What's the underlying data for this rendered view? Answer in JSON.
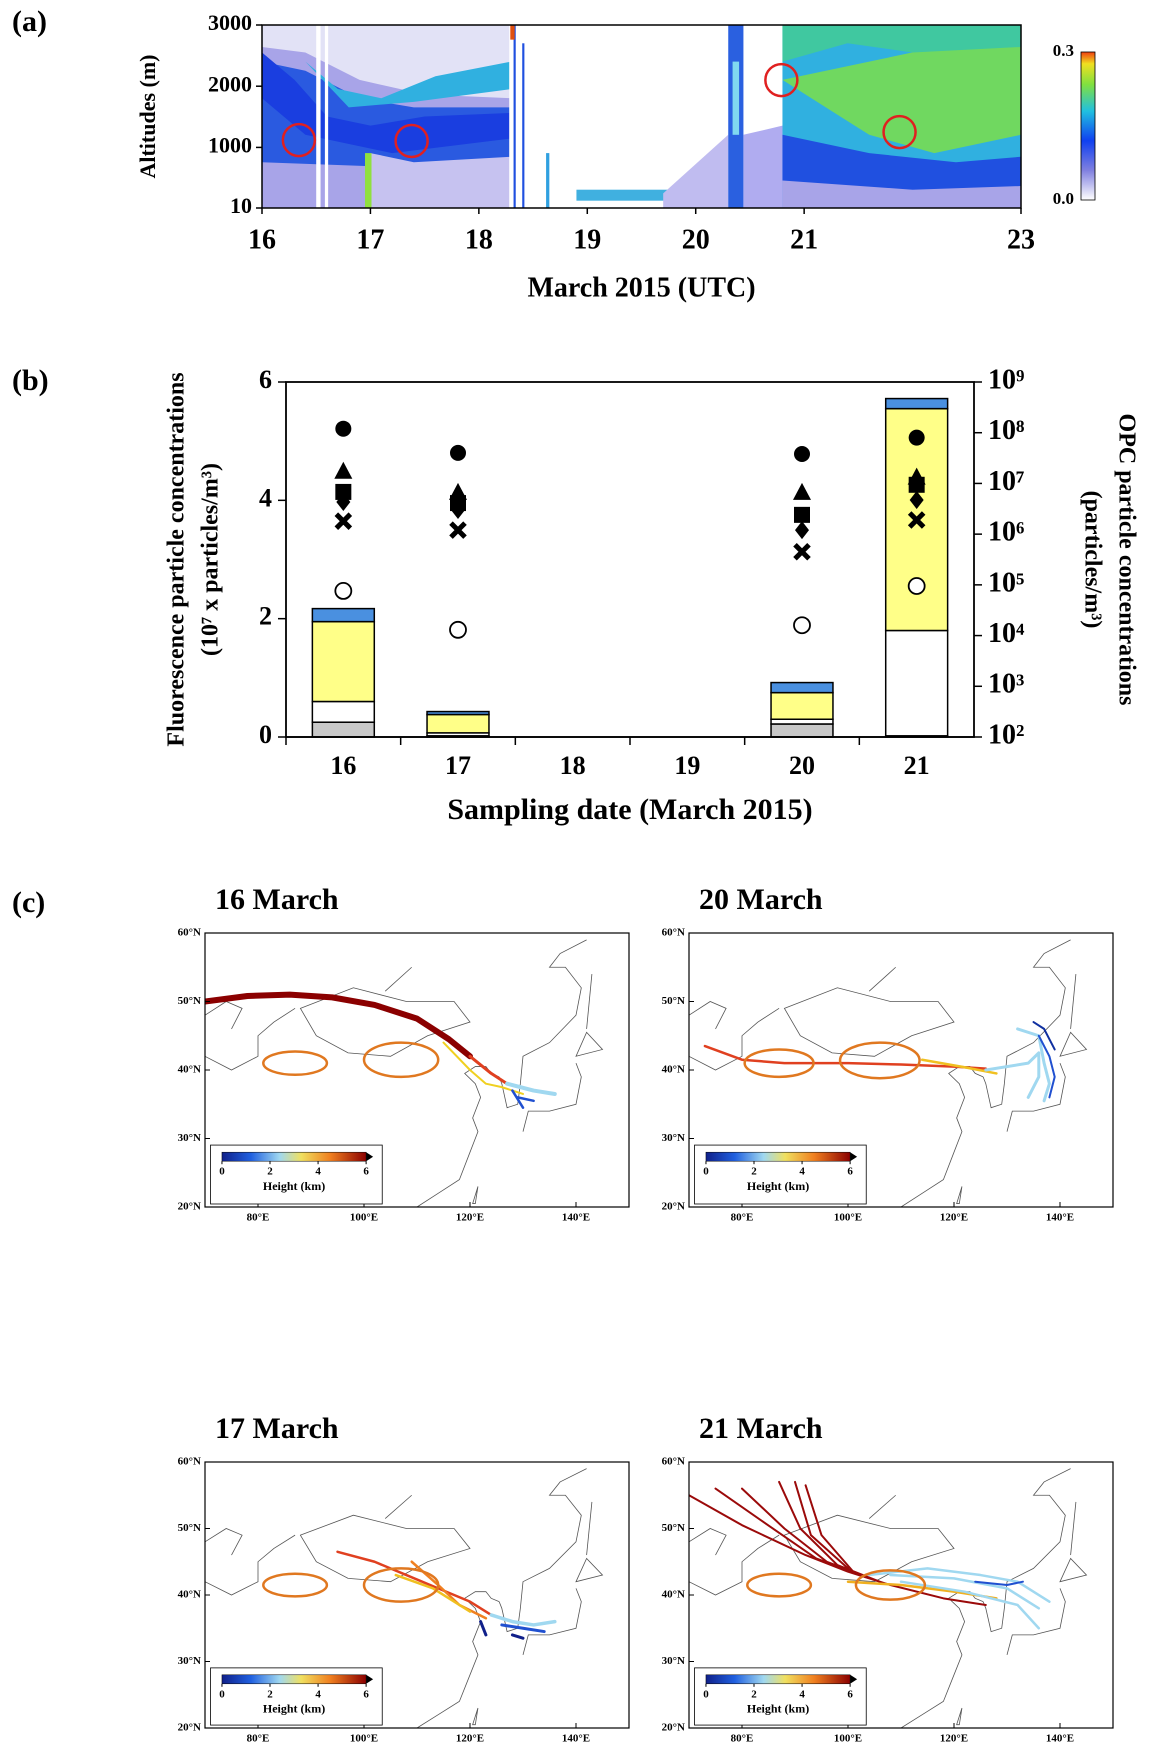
{
  "chart_data": [
    {
      "type": "heatmap",
      "panel_label": "(a)",
      "xlabel": "March  2015 (UTC)",
      "ylabel": "Altitudes (m)",
      "xlim": [
        16,
        23
      ],
      "xticks": [
        16,
        17,
        18,
        19,
        20,
        21,
        23
      ],
      "ylim": [
        10,
        3000
      ],
      "yticks": [
        10,
        1000,
        2000,
        3000
      ],
      "colorbar": {
        "lim": [
          0,
          0.3
        ],
        "ticks": [
          {
            "value": 0,
            "label": "0.0"
          },
          {
            "value": 0.3,
            "label": "0.3"
          }
        ]
      },
      "circles": {
        "color": "#e02020",
        "x": [
          16.34,
          17.38,
          20.79,
          21.88
        ],
        "y": [
          1120,
          1105,
          2100,
          1250
        ]
      }
    },
    {
      "type": "bar",
      "stacked": true,
      "panel_label": "(b)",
      "xlabel": "Sampling date (March 2015)",
      "ylabel": [
        "Fluorescence particle concentrations",
        "(10⁷ x particles/m³)"
      ],
      "y2label": [
        "OPC particle concentrations",
        "(particles/m³)"
      ],
      "categories": [
        "16",
        "17",
        "18",
        "19",
        "20",
        "21"
      ],
      "ylim": [
        0,
        6
      ],
      "yticks": [
        0,
        2,
        4,
        6
      ],
      "y2lim": [
        100,
        1000000000
      ],
      "y2log": true,
      "y2ticks": [
        {
          "value": 100,
          "label": "10²"
        },
        {
          "value": 1000,
          "label": "10³"
        },
        {
          "value": 10000,
          "label": "10⁴"
        },
        {
          "value": 100000,
          "label": "10⁵"
        },
        {
          "value": 1000000,
          "label": "10⁶"
        },
        {
          "value": 10000000,
          "label": "10⁷"
        },
        {
          "value": 100000000,
          "label": "10⁸"
        },
        {
          "value": 1000000000,
          "label": "10⁹"
        }
      ],
      "series": [
        {
          "color": "#c8c8c8",
          "values": [
            0.25,
            0.02,
            null,
            null,
            0.22,
            0.02
          ]
        },
        {
          "color": "#ffffff",
          "values": [
            0.35,
            0.05,
            null,
            null,
            0.08,
            1.78
          ]
        },
        {
          "color": "#ffff88",
          "values": [
            1.35,
            0.31,
            null,
            null,
            0.45,
            3.75
          ]
        },
        {
          "color": "#4a90e0",
          "values": [
            0.22,
            0.05,
            null,
            null,
            0.17,
            0.17
          ]
        },
        {
          "axis": "y2",
          "marker": "circle",
          "color": "#000000",
          "values": [
            120000000,
            40000000,
            null,
            null,
            38000000,
            80000000
          ]
        },
        {
          "axis": "y2",
          "marker": "triangle",
          "color": "#000000",
          "values": [
            17000000,
            6500000,
            null,
            null,
            6500000,
            13000000
          ]
        },
        {
          "axis": "y2",
          "marker": "square",
          "color": "#000000",
          "values": [
            6800000,
            4100000,
            null,
            null,
            2400000,
            9400000
          ]
        },
        {
          "axis": "y2",
          "marker": "diamond",
          "color": "#000000",
          "values": [
            4300000,
            3000000,
            null,
            null,
            1200000,
            4700000
          ]
        },
        {
          "axis": "y2",
          "marker": "x",
          "color": "#000000",
          "values": [
            1800000,
            1200000,
            null,
            null,
            450000,
            1900000
          ]
        },
        {
          "axis": "y2",
          "marker": "circle-open",
          "color": "#000000",
          "values": [
            76000,
            13000,
            null,
            null,
            16000,
            95000
          ]
        }
      ]
    },
    {
      "type": "map",
      "panel_label": "(c)",
      "titles": [
        "16 March",
        "20 March",
        "17 March",
        "21 March"
      ],
      "xlim": [
        70,
        150
      ],
      "xticks": [
        {
          "value": 80,
          "label": "80°E"
        },
        {
          "value": 100,
          "label": "100°E"
        },
        {
          "value": 120,
          "label": "120°E"
        },
        {
          "value": 140,
          "label": "140°E"
        }
      ],
      "ylim": [
        20,
        60
      ],
      "yticks": [
        {
          "value": 20,
          "label": "20°N"
        },
        {
          "value": 30,
          "label": "30°N"
        },
        {
          "value": 40,
          "label": "40°N"
        },
        {
          "value": 50,
          "label": "50°N"
        },
        {
          "value": 60,
          "label": "60°N"
        }
      ],
      "colorbar": {
        "label": "Height (km)",
        "lim": [
          0,
          6
        ],
        "ticks": [
          0,
          2,
          4,
          6
        ]
      }
    }
  ]
}
